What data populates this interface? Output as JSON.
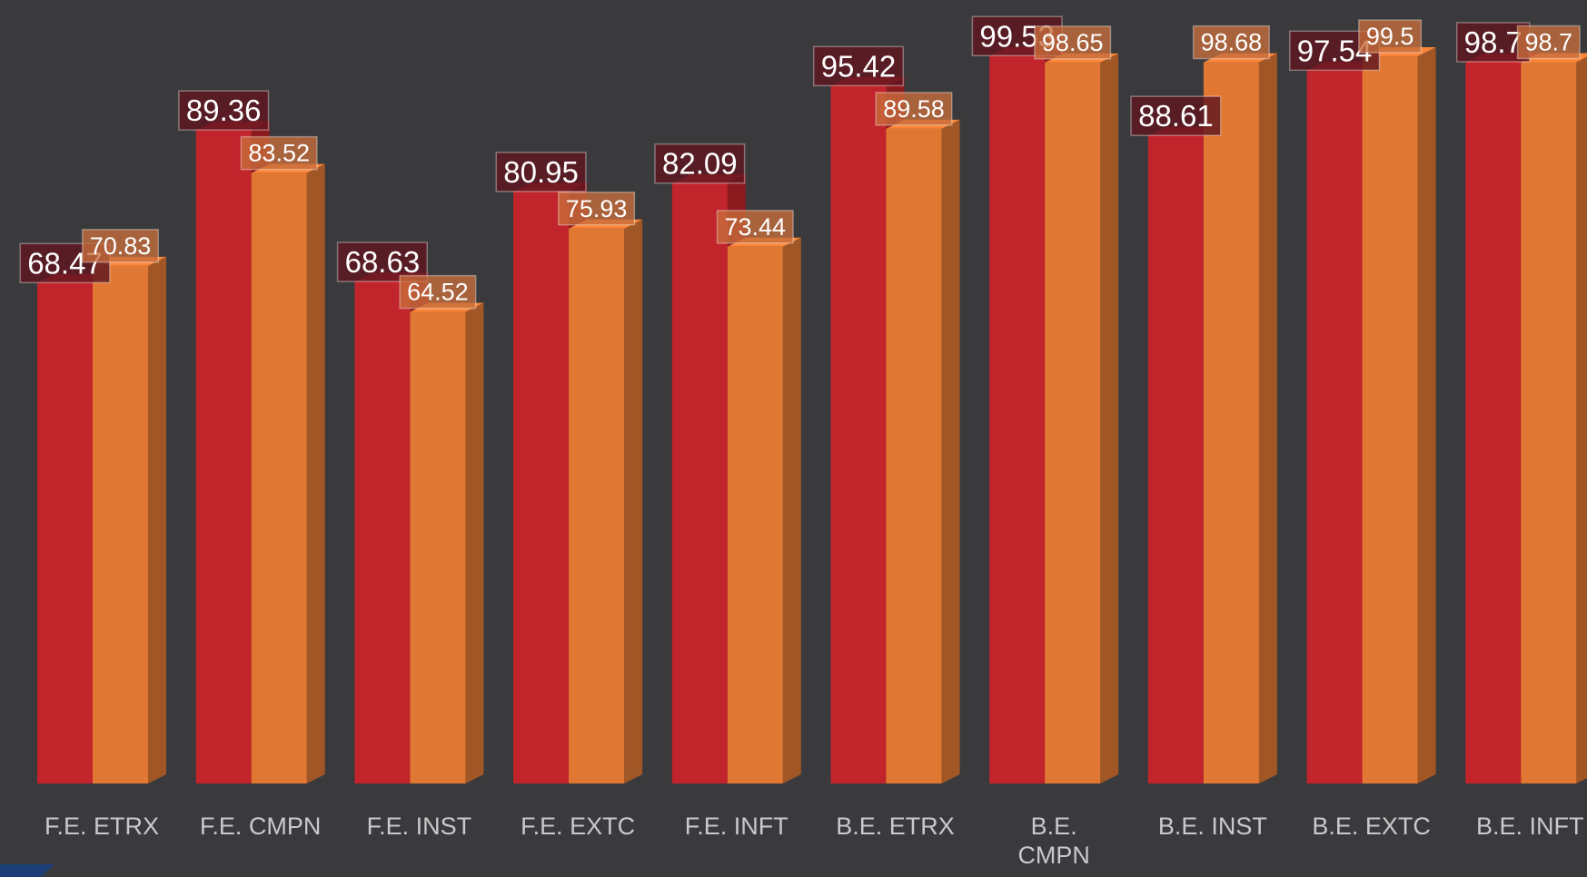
{
  "chart_data": {
    "type": "bar3d",
    "categories": [
      "F.E. ETRX",
      "F.E. CMPN",
      "F.E. INST",
      "F.E. EXTC",
      "F.E. INFT",
      "B.E. ETRX",
      "B.E. CMPN",
      "B.E. INST",
      "B.E. EXTC",
      "B.E. INFT"
    ],
    "series": [
      {
        "color": "#c1242b",
        "values": [
          68.47,
          89.36,
          68.63,
          80.95,
          82.09,
          95.42,
          99.53,
          88.61,
          97.54,
          98.7
        ]
      },
      {
        "color": "#e07833",
        "values": [
          70.83,
          83.52,
          64.52,
          75.93,
          73.44,
          89.58,
          98.65,
          98.68,
          99.5,
          98.7
        ]
      }
    ],
    "ylim": [
      0,
      100
    ]
  }
}
